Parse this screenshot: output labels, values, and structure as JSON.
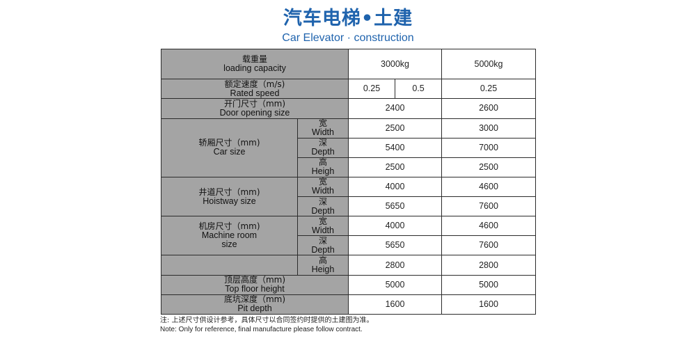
{
  "title": {
    "zh": "汽车电梯•土建",
    "en": "Car Elevator · construction"
  },
  "table": {
    "capacity": {
      "label_zh": "载重量",
      "label_en": "loading capacity",
      "col1": "3000kg",
      "col2": "5000kg"
    },
    "speed": {
      "label_zh": "额定速度（m/s)",
      "label_en": "Rated speed",
      "col1a": "0.25",
      "col1b": "0.5",
      "col2": "0.25"
    },
    "door": {
      "label_zh": "开门尺寸（mm)",
      "label_en": "Door opening size",
      "col1": "2400",
      "col2": "2600"
    },
    "car": {
      "label_zh": "轿厢尺寸（mm)",
      "label_en": "Car size",
      "width": {
        "zh": "宽",
        "en": "Width",
        "col1": "2500",
        "col2": "3000"
      },
      "depth": {
        "zh": "深",
        "en": "Depth",
        "col1": "5400",
        "col2": "7000"
      },
      "height": {
        "zh": "高",
        "en": "Heigh",
        "col1": "2500",
        "col2": "2500"
      }
    },
    "hoistway": {
      "label_zh": "井道尺寸（mm)",
      "label_en": "Hoistway size",
      "width": {
        "zh": "宽",
        "en": "Width",
        "col1": "4000",
        "col2": "4600"
      },
      "depth": {
        "zh": "深",
        "en": "Depth",
        "col1": "5650",
        "col2": "7600"
      }
    },
    "machine": {
      "label_zh": "机房尺寸（mm)",
      "label_en_1": "Machine room",
      "label_en_2": "size",
      "width": {
        "zh": "宽",
        "en": "Width",
        "col1": "4000",
        "col2": "4600"
      },
      "depth": {
        "zh": "深",
        "en": "Depth",
        "col1": "5650",
        "col2": "7600"
      },
      "height": {
        "zh": "高",
        "en": "Heigh",
        "col1": "2800",
        "col2": "2800"
      }
    },
    "top_floor": {
      "label_zh": "顶层高度（mm)",
      "label_en": "Top floor height",
      "col1": "5000",
      "col2": "5000"
    },
    "pit": {
      "label_zh": "底坑深度（mm)",
      "label_en": "Pit depth",
      "col1": "1600",
      "col2": "1600"
    }
  },
  "notes": {
    "zh": "注: 上述尺寸供设计参考，具体尺寸以合同签约时提供的土建图为准。",
    "en": "Note: Only for reference, final manufacture please follow contract."
  }
}
